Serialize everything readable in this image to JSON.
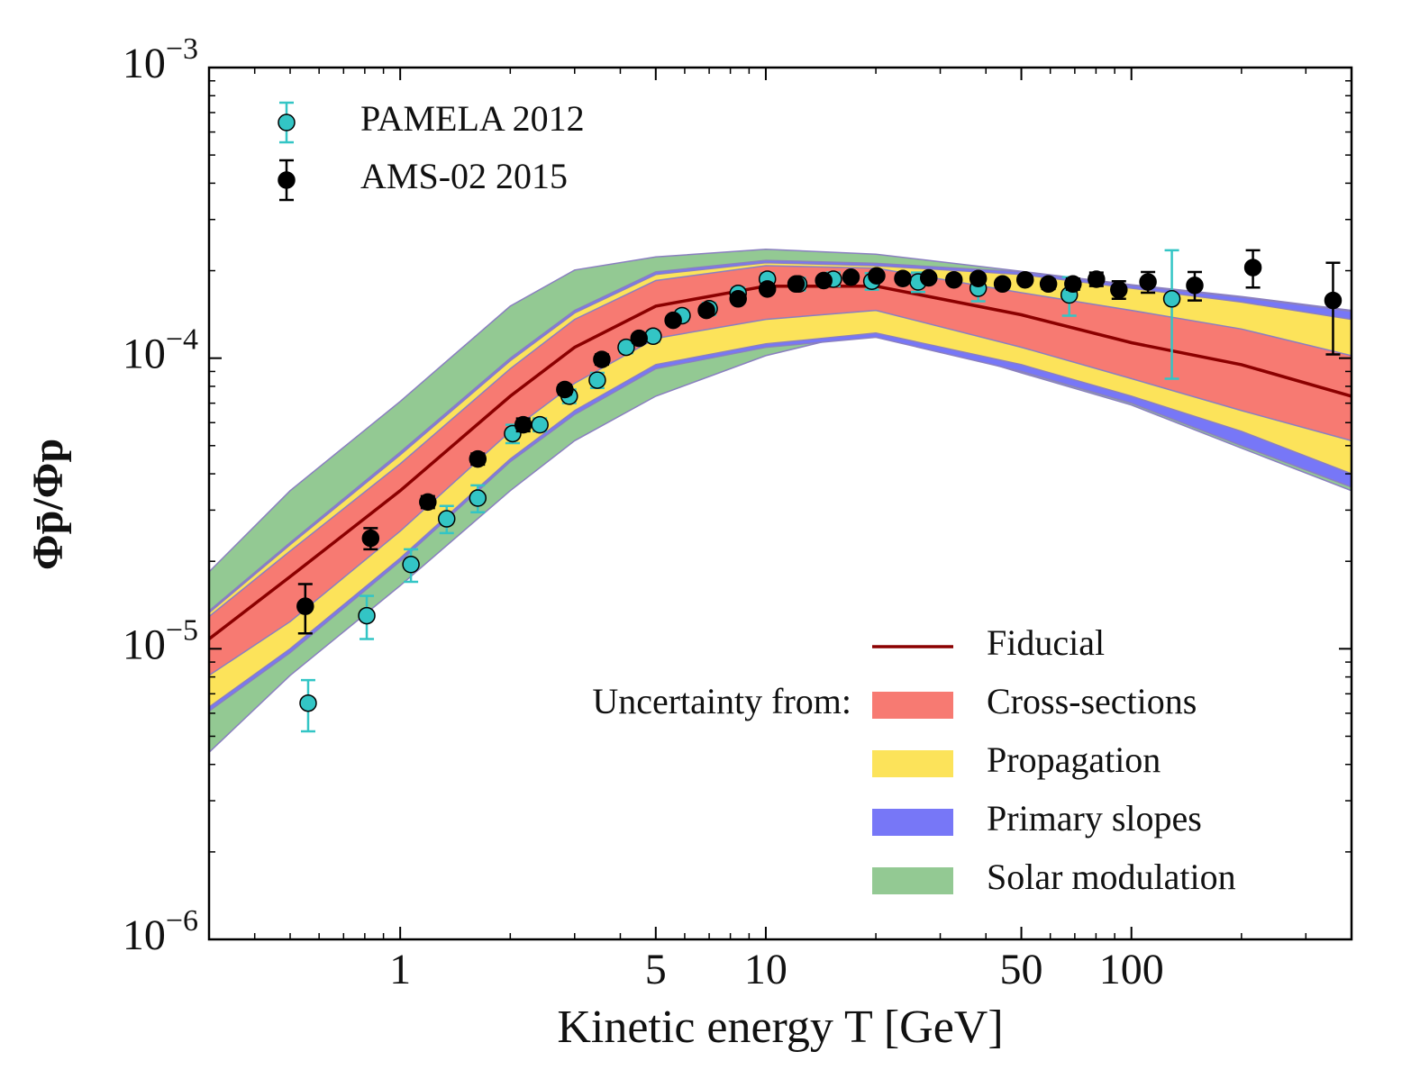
{
  "chart_data": {
    "type": "line",
    "x_label": "Kinetic energy T [GeV]",
    "y_label": "Φp̄/Φp",
    "x_log": true,
    "y_log": true,
    "xlim": [
      0.3,
      400
    ],
    "ylim": [
      1e-06,
      0.001
    ],
    "xticks": [
      1,
      5,
      10,
      50,
      100
    ],
    "yticks": [
      {
        "value": 1e-06,
        "label": "10−6"
      },
      {
        "value": 1e-05,
        "label": "10−5"
      },
      {
        "value": 0.0001,
        "label": "10−4"
      },
      {
        "value": 0.001,
        "label": "10−3"
      }
    ],
    "x": [
      0.3,
      0.5,
      1,
      2,
      3,
      5,
      10,
      20,
      50,
      100,
      200,
      400
    ],
    "fiducial": {
      "name": "Fiducial",
      "color": "#8b0000",
      "values": [
        1.08e-05,
        1.77e-05,
        3.5e-05,
        7.4e-05,
        0.000109,
        0.000151,
        0.000177,
        0.000177,
        0.000141,
        0.000113,
        9.5e-05,
        7.4e-05
      ]
    },
    "bands_title": "Uncertainty from:",
    "bands": [
      {
        "name": "Cross-sections",
        "color": "#f77a72",
        "upper": [
          1.29e-05,
          2.17e-05,
          4.33e-05,
          9.2e-05,
          0.000136,
          0.000185,
          0.000208,
          0.000204,
          0.000168,
          0.000146,
          0.000126,
          0.000102
        ],
        "lower": [
          8.1e-06,
          1.24e-05,
          2.54e-05,
          5.6e-05,
          8.2e-05,
          0.000117,
          0.000136,
          0.000146,
          0.000109,
          8.5e-05,
          6.6e-05,
          5.2e-05
        ]
      },
      {
        "name": "Propagation",
        "color": "#fce35a",
        "upper": [
          1.33e-05,
          2.28e-05,
          4.65e-05,
          9.8e-05,
          0.000143,
          0.000194,
          0.000213,
          0.000208,
          0.000194,
          0.000174,
          0.000156,
          0.000136
        ],
        "lower": [
          6.3e-06,
          1e-05,
          2.05e-05,
          4.5e-05,
          6.6e-05,
          9.5e-05,
          0.000112,
          0.000122,
          9.5e-05,
          7.4e-05,
          5.6e-05,
          4e-05
        ]
      },
      {
        "name": "Primary slopes",
        "color": "#7777f7",
        "upper": [
          1.35e-05,
          2.32e-05,
          4.75e-05,
          0.0001,
          0.000146,
          0.000198,
          0.000217,
          0.000212,
          0.000198,
          0.000178,
          0.000162,
          0.000145
        ],
        "lower": [
          6.1e-06,
          9.7e-06,
          2e-05,
          4.4e-05,
          6.4e-05,
          9.2e-05,
          0.000109,
          0.000118,
          9e-05,
          7e-05,
          5e-05,
          3.6e-05
        ]
      },
      {
        "name": "Solar modulation",
        "color": "#93c993",
        "upper": [
          1.84e-05,
          3.5e-05,
          7.1e-05,
          0.000151,
          0.000201,
          0.000223,
          0.000237,
          0.000228,
          0.000199,
          0.000179,
          0.000163,
          0.000146
        ],
        "lower": [
          4.4e-06,
          8.1e-06,
          1.65e-05,
          3.5e-05,
          5.2e-05,
          7.4e-05,
          0.000102,
          0.000126,
          8.9e-05,
          6.9e-05,
          4.9e-05,
          3.5e-05
        ]
      }
    ],
    "series": [
      {
        "name": "PAMELA 2012",
        "color": "#33c5c5",
        "x": [
          0.56,
          0.81,
          1.07,
          1.34,
          1.63,
          2.03,
          2.41,
          2.9,
          3.46,
          4.15,
          4.92,
          5.9,
          7.0,
          8.4,
          10.1,
          12.3,
          15.3,
          19.5,
          26.1,
          38.1,
          67.6,
          129
        ],
        "values": [
          6.5e-06,
          1.3e-05,
          1.95e-05,
          2.8e-05,
          3.3e-05,
          5.5e-05,
          5.9e-05,
          7.4e-05,
          8.4e-05,
          0.000109,
          0.000119,
          0.00014,
          0.000148,
          0.000167,
          0.000187,
          0.00018,
          0.000187,
          0.000184,
          0.000183,
          0.000174,
          0.000165,
          0.00016
        ],
        "errors": [
          1.3e-06,
          2.2e-06,
          2.5e-06,
          3e-06,
          3.5e-06,
          4e-06,
          3e-06,
          4e-06,
          5e-06,
          5e-06,
          5e-06,
          6e-06,
          7e-06,
          8e-06,
          9e-06,
          9e-06,
          1e-05,
          1.2e-05,
          1.4e-05,
          1.7e-05,
          2.5e-05,
          7.5e-05
        ]
      },
      {
        "name": "AMS-02 2015",
        "color": "#000000",
        "x": [
          0.55,
          0.83,
          1.19,
          1.63,
          2.17,
          2.82,
          3.56,
          4.5,
          5.58,
          6.88,
          8.4,
          10.1,
          12.1,
          14.4,
          17.1,
          20.1,
          23.7,
          27.9,
          32.7,
          38.1,
          44.4,
          51.2,
          59.3,
          69.2,
          80.2,
          92.4,
          111,
          149,
          215,
          356
        ],
        "values": [
          1.4e-05,
          2.4e-05,
          3.2e-05,
          4.5e-05,
          5.9e-05,
          7.8e-05,
          9.9e-05,
          0.000117,
          0.000135,
          0.000146,
          0.00016,
          0.000173,
          0.00018,
          0.000185,
          0.00019,
          0.000192,
          0.000188,
          0.000189,
          0.000186,
          0.000188,
          0.00018,
          0.000186,
          0.00018,
          0.00018,
          0.000187,
          0.000172,
          0.000183,
          0.000178,
          0.000205,
          0.000158
        ],
        "errors": [
          2.7e-06,
          2e-06,
          1.5e-06,
          2e-06,
          3e-06,
          3e-06,
          4e-06,
          4e-06,
          4e-06,
          5e-06,
          5e-06,
          5e-06,
          5e-06,
          5e-06,
          5e-06,
          5e-06,
          5e-06,
          5e-06,
          5e-06,
          5e-06,
          6e-06,
          6e-06,
          7e-06,
          8e-06,
          1e-05,
          1.2e-05,
          1.5e-05,
          2e-05,
          3e-05,
          5.5e-05
        ]
      }
    ]
  }
}
